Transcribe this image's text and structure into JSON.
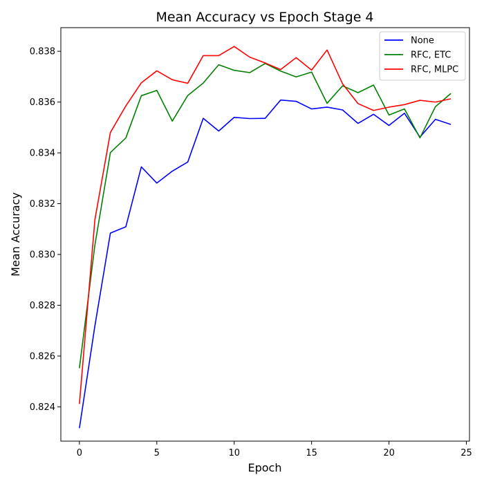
{
  "chart_data": {
    "type": "line",
    "title": "Mean Accuracy vs Epoch Stage 4",
    "xlabel": "Epoch",
    "ylabel": "Mean Accuracy",
    "xlim": [
      -1.2,
      25.2
    ],
    "ylim": [
      0.82265,
      0.83893
    ],
    "xticks": [
      0,
      5,
      10,
      15,
      20,
      25
    ],
    "yticks": [
      0.824,
      0.826,
      0.828,
      0.83,
      0.832,
      0.834,
      0.836,
      0.838
    ],
    "xtick_labels": [
      "0",
      "5",
      "10",
      "15",
      "20",
      "25"
    ],
    "ytick_labels": [
      "0.824",
      "0.826",
      "0.828",
      "0.830",
      "0.832",
      "0.834",
      "0.836",
      "0.838"
    ],
    "grid": false,
    "legend_position": "top-right",
    "x": [
      0,
      1,
      2,
      3,
      4,
      5,
      6,
      7,
      8,
      9,
      10,
      11,
      12,
      13,
      14,
      15,
      16,
      17,
      18,
      19,
      20,
      21,
      22,
      23,
      24
    ],
    "series": [
      {
        "name": "None",
        "color": "#0000ff",
        "values": [
          0.82316,
          0.82719,
          0.83084,
          0.83109,
          0.83345,
          0.83281,
          0.83328,
          0.83364,
          0.83536,
          0.83486,
          0.8354,
          0.83535,
          0.83536,
          0.83608,
          0.83603,
          0.83573,
          0.8358,
          0.83569,
          0.83516,
          0.83552,
          0.83508,
          0.83556,
          0.83462,
          0.83532,
          0.83512
        ]
      },
      {
        "name": "RFC, ETC",
        "color": "#008000",
        "values": [
          0.82552,
          0.83037,
          0.83401,
          0.83459,
          0.83625,
          0.83646,
          0.83525,
          0.83626,
          0.83675,
          0.83747,
          0.83725,
          0.83716,
          0.83752,
          0.83722,
          0.83699,
          0.83718,
          0.83595,
          0.83664,
          0.83637,
          0.83667,
          0.83549,
          0.83573,
          0.83459,
          0.83582,
          0.83634
        ]
      },
      {
        "name": "RFC, MLPC",
        "color": "#ff0000",
        "values": [
          0.82411,
          0.83137,
          0.8348,
          0.83585,
          0.83676,
          0.83723,
          0.83688,
          0.83674,
          0.83783,
          0.83783,
          0.83819,
          0.83777,
          0.83754,
          0.83728,
          0.83775,
          0.83726,
          0.83805,
          0.83672,
          0.83594,
          0.83567,
          0.8358,
          0.8359,
          0.83607,
          0.836,
          0.83613
        ]
      }
    ]
  }
}
